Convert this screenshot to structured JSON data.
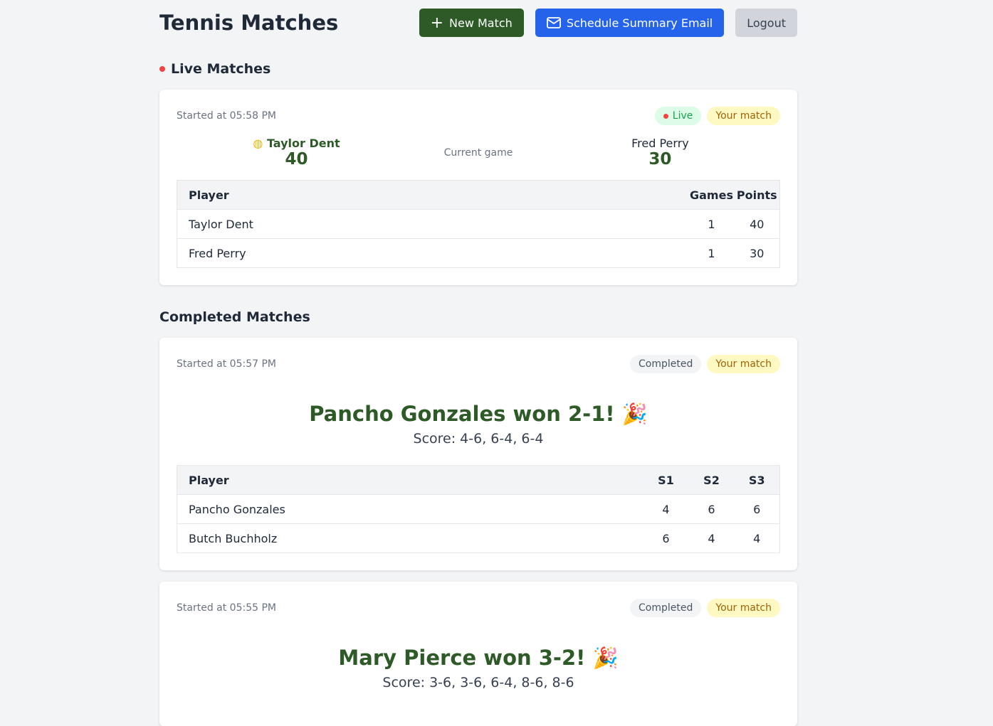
{
  "header": {
    "title": "Tennis Matches",
    "new_match": "New Match",
    "schedule": "Schedule Summary Email",
    "logout": "Logout"
  },
  "live": {
    "heading": "Live Matches",
    "started": "Started at 05:58 PM",
    "badge_live": "Live",
    "badge_yours": "Your match",
    "p1": {
      "name": "Taylor Dent",
      "points": "40"
    },
    "p2": {
      "name": "Fred Perry",
      "points": "30"
    },
    "current_game": "Current game",
    "columns": [
      "Player",
      "Games",
      "Points"
    ],
    "rows": [
      [
        "Taylor Dent",
        "1",
        "40"
      ],
      [
        "Fred Perry",
        "1",
        "30"
      ]
    ]
  },
  "completed": {
    "heading": "Completed Matches",
    "matches": [
      {
        "started": "Started at 05:57 PM",
        "status": "Completed",
        "yours": "Your match",
        "winner": "Pancho Gonzales won 2-1! 🎉",
        "score": "Score: 4-6, 6-4, 6-4",
        "columns": [
          "Player",
          "S1",
          "S2",
          "S3"
        ],
        "rows": [
          [
            "Pancho Gonzales",
            "4",
            "6",
            "6"
          ],
          [
            "Butch Buchholz",
            "6",
            "4",
            "4"
          ]
        ]
      },
      {
        "started": "Started at 05:55 PM",
        "status": "Completed",
        "yours": "Your match",
        "winner": "Mary Pierce won 3-2! 🎉",
        "score": "Score: 3-6, 3-6, 6-4, 8-6, 8-6"
      }
    ]
  }
}
